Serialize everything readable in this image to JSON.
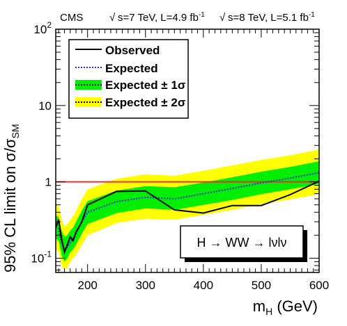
{
  "chart_data": {
    "type": "line",
    "header": {
      "experiment": "CMS",
      "run1": {
        "energy": "s=7 TeV, L=4.9 fb",
        "sup": "-1"
      },
      "run2": {
        "energy": "s=8 TeV, L=5.1 fb",
        "sup": "-1"
      }
    },
    "xlabel": {
      "main": "m",
      "sub": "H",
      "rest": " (GeV)"
    },
    "ylabel": {
      "main": "95% CL limit on σ/σ",
      "sub": "SM"
    },
    "xlim": [
      145,
      600
    ],
    "ylim": [
      0.065,
      100
    ],
    "yscale": "log",
    "x_ticks": [
      "200",
      "300",
      "400",
      "500",
      "600"
    ],
    "x_tick_values": [
      200,
      300,
      400,
      500,
      600
    ],
    "y_ticks": [
      {
        "value": 0.1,
        "base": "10",
        "exp": "-1"
      },
      {
        "value": 1,
        "base": "1",
        "exp": ""
      },
      {
        "value": 10,
        "base": "10",
        "exp": ""
      },
      {
        "value": 100,
        "base": "10",
        "exp": "2"
      }
    ],
    "reference_line": {
      "value": 1,
      "color": "#e8322c"
    },
    "legend": {
      "placement": "top-left",
      "entries": [
        {
          "label": "Observed",
          "style": "line",
          "color": "#000000"
        },
        {
          "label": "Expected",
          "style": "dotted",
          "color": "#2b2bd6"
        },
        {
          "label": "Expected ± 1σ",
          "style": "band",
          "color": "#00ee00"
        },
        {
          "label": "Expected ± 2σ",
          "style": "band",
          "color": "#ffff00"
        }
      ]
    },
    "annotation": "H → WW → lνlν",
    "series": [
      {
        "name": "Observed",
        "x": [
          145,
          150,
          155,
          160,
          165,
          170,
          175,
          180,
          190,
          200,
          250,
          300,
          350,
          400,
          450,
          500,
          550,
          600
        ],
        "values": [
          0.25,
          0.32,
          0.18,
          0.12,
          0.15,
          0.19,
          0.17,
          0.22,
          0.3,
          0.5,
          0.75,
          0.76,
          0.43,
          0.39,
          0.49,
          0.49,
          0.68,
          1.02
        ]
      },
      {
        "name": "Expected",
        "x": [
          145,
          150,
          155,
          160,
          165,
          170,
          175,
          180,
          190,
          200,
          250,
          300,
          350,
          400,
          450,
          500,
          550,
          600
        ],
        "values": [
          0.26,
          0.24,
          0.16,
          0.13,
          0.14,
          0.16,
          0.18,
          0.21,
          0.3,
          0.4,
          0.55,
          0.63,
          0.6,
          0.7,
          0.82,
          0.97,
          1.12,
          1.32
        ]
      }
    ],
    "bands": {
      "x": [
        145,
        150,
        155,
        160,
        165,
        170,
        175,
        180,
        190,
        200,
        250,
        300,
        350,
        400,
        450,
        500,
        550,
        600
      ],
      "one_sigma": {
        "lo": [
          0.18,
          0.17,
          0.11,
          0.09,
          0.1,
          0.12,
          0.13,
          0.15,
          0.21,
          0.28,
          0.39,
          0.45,
          0.43,
          0.5,
          0.58,
          0.69,
          0.8,
          0.94
        ],
        "hi": [
          0.37,
          0.34,
          0.23,
          0.19,
          0.2,
          0.23,
          0.25,
          0.3,
          0.42,
          0.56,
          0.77,
          0.88,
          0.85,
          0.98,
          1.15,
          1.36,
          1.57,
          1.86
        ]
      },
      "two_sigma": {
        "lo": [
          0.13,
          0.12,
          0.08,
          0.07,
          0.075,
          0.09,
          0.1,
          0.11,
          0.15,
          0.2,
          0.29,
          0.33,
          0.32,
          0.37,
          0.43,
          0.51,
          0.59,
          0.69
        ],
        "hi": [
          0.52,
          0.48,
          0.32,
          0.26,
          0.28,
          0.32,
          0.36,
          0.42,
          0.6,
          0.8,
          1.1,
          1.26,
          1.2,
          1.4,
          1.64,
          1.94,
          2.24,
          2.64
        ]
      }
    }
  }
}
